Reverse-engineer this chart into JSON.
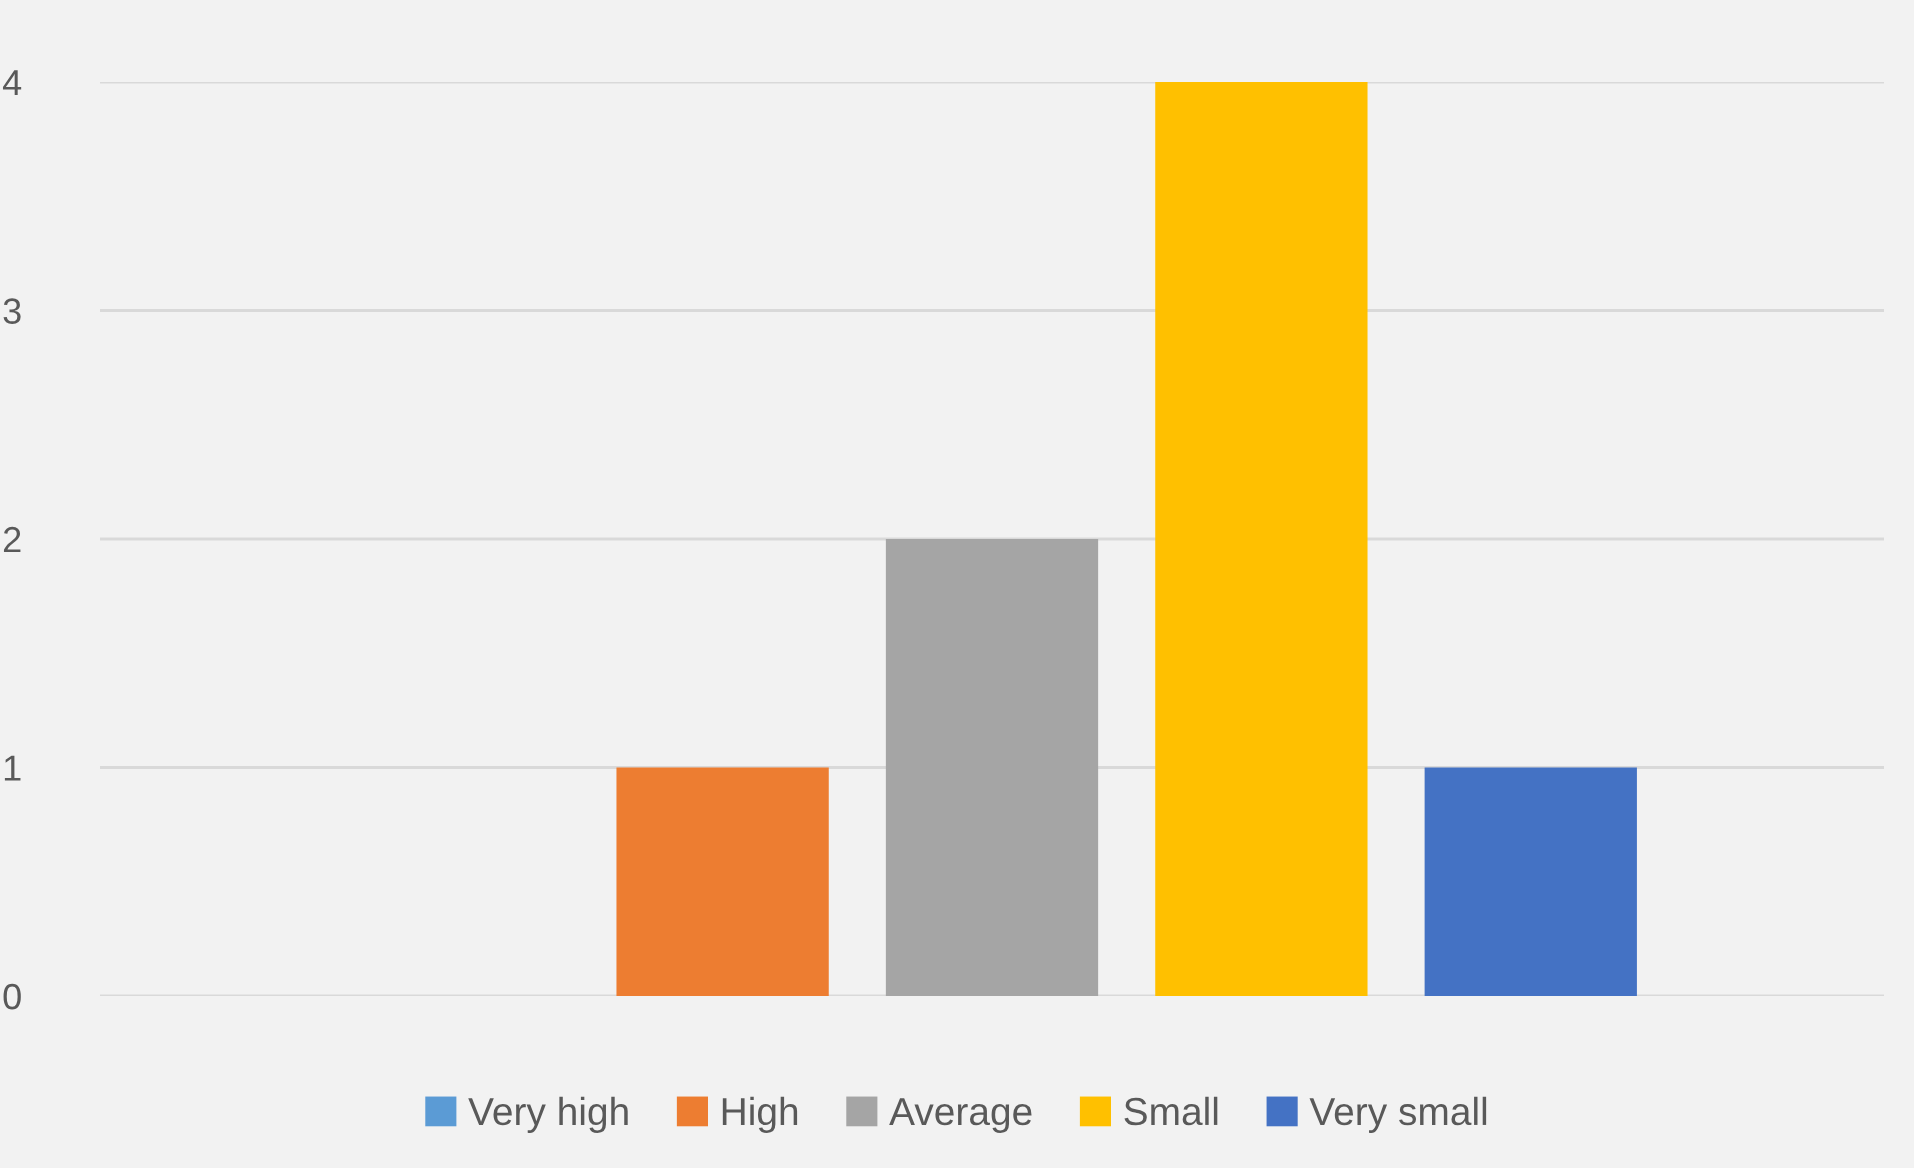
{
  "chart_data": {
    "type": "bar",
    "categories": [
      null
    ],
    "series": [
      {
        "name": "Very high",
        "color": "#5b9bd5",
        "values": [
          0
        ]
      },
      {
        "name": "High",
        "color": "#ed7d31",
        "values": [
          1
        ]
      },
      {
        "name": "Average",
        "color": "#a5a5a5",
        "values": [
          2
        ]
      },
      {
        "name": "Small",
        "color": "#ffc000",
        "values": [
          4
        ]
      },
      {
        "name": "Very small",
        "color": "#4472c4",
        "values": [
          1
        ]
      }
    ],
    "ylim": [
      0,
      4
    ],
    "yticks": [
      0,
      1,
      2,
      3,
      4
    ],
    "grid": "y",
    "legend": "bottom",
    "tick_labels": "y"
  }
}
